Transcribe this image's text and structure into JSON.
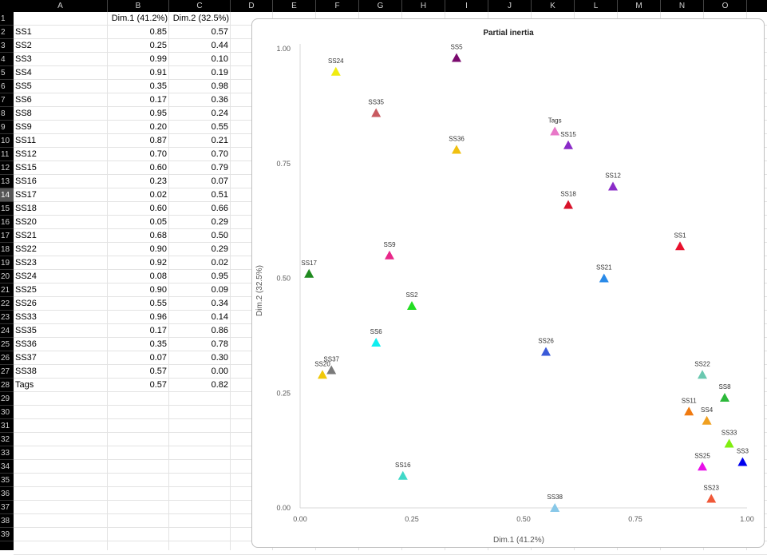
{
  "sheet": {
    "column_headers": [
      "A",
      "B",
      "C",
      "D",
      "E",
      "F",
      "G",
      "H",
      "I",
      "J",
      "K",
      "L",
      "M",
      "N",
      "O"
    ],
    "row_numbers": [
      1,
      2,
      3,
      4,
      5,
      6,
      7,
      8,
      9,
      10,
      11,
      12,
      13,
      14,
      15,
      16,
      17,
      18,
      19,
      20,
      21,
      22,
      23,
      24,
      25,
      26,
      27,
      28,
      29,
      30,
      31,
      32,
      33,
      34,
      35,
      36,
      37,
      38,
      39
    ],
    "selected_row": 14,
    "header_b": "Dim.1 (41.2%)",
    "header_c": "Dim.2 (32.5%)",
    "rows": [
      {
        "label": "SS1",
        "d1": "0.85",
        "d2": "0.57"
      },
      {
        "label": "SS2",
        "d1": "0.25",
        "d2": "0.44"
      },
      {
        "label": "SS3",
        "d1": "0.99",
        "d2": "0.10"
      },
      {
        "label": "SS4",
        "d1": "0.91",
        "d2": "0.19"
      },
      {
        "label": "SS5",
        "d1": "0.35",
        "d2": "0.98"
      },
      {
        "label": "SS6",
        "d1": "0.17",
        "d2": "0.36"
      },
      {
        "label": "SS8",
        "d1": "0.95",
        "d2": "0.24"
      },
      {
        "label": "SS9",
        "d1": "0.20",
        "d2": "0.55"
      },
      {
        "label": "SS11",
        "d1": "0.87",
        "d2": "0.21"
      },
      {
        "label": "SS12",
        "d1": "0.70",
        "d2": "0.70"
      },
      {
        "label": "SS15",
        "d1": "0.60",
        "d2": "0.79"
      },
      {
        "label": "SS16",
        "d1": "0.23",
        "d2": "0.07"
      },
      {
        "label": "SS17",
        "d1": "0.02",
        "d2": "0.51"
      },
      {
        "label": "SS18",
        "d1": "0.60",
        "d2": "0.66"
      },
      {
        "label": "SS20",
        "d1": "0.05",
        "d2": "0.29"
      },
      {
        "label": "SS21",
        "d1": "0.68",
        "d2": "0.50"
      },
      {
        "label": "SS22",
        "d1": "0.90",
        "d2": "0.29"
      },
      {
        "label": "SS23",
        "d1": "0.92",
        "d2": "0.02"
      },
      {
        "label": "SS24",
        "d1": "0.08",
        "d2": "0.95"
      },
      {
        "label": "SS25",
        "d1": "0.90",
        "d2": "0.09"
      },
      {
        "label": "SS26",
        "d1": "0.55",
        "d2": "0.34"
      },
      {
        "label": "SS33",
        "d1": "0.96",
        "d2": "0.14"
      },
      {
        "label": "SS35",
        "d1": "0.17",
        "d2": "0.86"
      },
      {
        "label": "SS36",
        "d1": "0.35",
        "d2": "0.78"
      },
      {
        "label": "SS37",
        "d1": "0.07",
        "d2": "0.30"
      },
      {
        "label": "SS38",
        "d1": "0.57",
        "d2": "0.00"
      },
      {
        "label": "Tags",
        "d1": "0.57",
        "d2": "0.82"
      }
    ]
  },
  "chart_data": {
    "type": "scatter",
    "title": "Partial inertia",
    "xlabel": "Dim.1 (41.2%)",
    "ylabel": "Dim.2 (32.5%)",
    "xlim": [
      0,
      1
    ],
    "ylim": [
      0,
      1
    ],
    "x_ticks": [
      "0.00",
      "0.25",
      "0.50",
      "0.75",
      "1.00"
    ],
    "y_ticks": [
      "0.00",
      "0.25",
      "0.50",
      "0.75",
      "1.00"
    ],
    "marker": "triangle",
    "grid": false,
    "points": [
      {
        "label": "SS1",
        "x": 0.85,
        "y": 0.57,
        "color": "#e8112d"
      },
      {
        "label": "SS2",
        "x": 0.25,
        "y": 0.44,
        "color": "#22dd22"
      },
      {
        "label": "SS3",
        "x": 0.99,
        "y": 0.1,
        "color": "#0000ee"
      },
      {
        "label": "SS4",
        "x": 0.91,
        "y": 0.19,
        "color": "#f0a020"
      },
      {
        "label": "SS5",
        "x": 0.35,
        "y": 0.98,
        "color": "#7a0a6e"
      },
      {
        "label": "SS6",
        "x": 0.17,
        "y": 0.36,
        "color": "#10eef0"
      },
      {
        "label": "SS8",
        "x": 0.95,
        "y": 0.24,
        "color": "#2cb83a"
      },
      {
        "label": "SS9",
        "x": 0.2,
        "y": 0.55,
        "color": "#e8288a"
      },
      {
        "label": "SS11",
        "x": 0.87,
        "y": 0.21,
        "color": "#f07a10"
      },
      {
        "label": "SS12",
        "x": 0.7,
        "y": 0.7,
        "color": "#8a2bc8"
      },
      {
        "label": "SS15",
        "x": 0.6,
        "y": 0.79,
        "color": "#8a2bc8"
      },
      {
        "label": "SS16",
        "x": 0.23,
        "y": 0.07,
        "color": "#40d8c8"
      },
      {
        "label": "SS17",
        "x": 0.02,
        "y": 0.51,
        "color": "#1f8a1f"
      },
      {
        "label": "SS18",
        "x": 0.6,
        "y": 0.66,
        "color": "#d8122a"
      },
      {
        "label": "SS20",
        "x": 0.05,
        "y": 0.29,
        "color": "#f0c808"
      },
      {
        "label": "SS21",
        "x": 0.68,
        "y": 0.5,
        "color": "#2a8ae8"
      },
      {
        "label": "SS22",
        "x": 0.9,
        "y": 0.29,
        "color": "#6ac8b0"
      },
      {
        "label": "SS23",
        "x": 0.92,
        "y": 0.02,
        "color": "#f05838"
      },
      {
        "label": "SS24",
        "x": 0.08,
        "y": 0.95,
        "color": "#f0ec10"
      },
      {
        "label": "SS25",
        "x": 0.9,
        "y": 0.09,
        "color": "#e810e8"
      },
      {
        "label": "SS26",
        "x": 0.55,
        "y": 0.34,
        "color": "#3a5ad8"
      },
      {
        "label": "SS33",
        "x": 0.96,
        "y": 0.14,
        "color": "#80ee10"
      },
      {
        "label": "SS35",
        "x": 0.17,
        "y": 0.86,
        "color": "#c85a60"
      },
      {
        "label": "SS36",
        "x": 0.35,
        "y": 0.78,
        "color": "#f0c010"
      },
      {
        "label": "SS37",
        "x": 0.07,
        "y": 0.3,
        "color": "#7a7a7a"
      },
      {
        "label": "SS38",
        "x": 0.57,
        "y": 0.0,
        "color": "#88c8e8"
      },
      {
        "label": "Tags",
        "x": 0.57,
        "y": 0.82,
        "color": "#e878c8"
      }
    ]
  }
}
